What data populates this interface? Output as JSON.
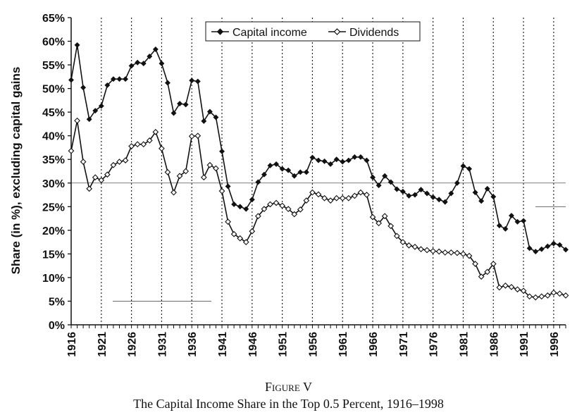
{
  "figure": {
    "label": "Figure V",
    "caption": "The Capital Income Share in the Top 0.5 Percent, 1916–1998"
  },
  "chart_data": {
    "type": "line",
    "ylabel": "Share (in %), excluding capital gains",
    "xlabel": "",
    "xlim": [
      1916,
      1998
    ],
    "ylim": [
      0,
      65
    ],
    "y_tick_values": [
      0,
      5,
      10,
      15,
      20,
      25,
      30,
      35,
      40,
      45,
      50,
      55,
      60,
      65
    ],
    "y_tick_labels": [
      "0%",
      "5%",
      "10%",
      "15%",
      "20%",
      "25%",
      "30%",
      "35%",
      "40%",
      "45%",
      "50%",
      "55%",
      "60%",
      "65%"
    ],
    "x_ticks": [
      "1916",
      "1921",
      "1926",
      "1931",
      "1936",
      "1941",
      "1946",
      "1951",
      "1956",
      "1961",
      "1966",
      "1971",
      "1976",
      "1981",
      "1986",
      "1991",
      "1996"
    ],
    "grid": "vertical dotted at x ticks; horizontal solid segments in places",
    "legend_position": "top-center",
    "x": [
      1916,
      1917,
      1918,
      1919,
      1920,
      1921,
      1922,
      1923,
      1924,
      1925,
      1926,
      1927,
      1928,
      1929,
      1930,
      1931,
      1932,
      1933,
      1934,
      1935,
      1936,
      1937,
      1938,
      1939,
      1940,
      1941,
      1942,
      1943,
      1944,
      1945,
      1946,
      1947,
      1948,
      1949,
      1950,
      1951,
      1952,
      1953,
      1954,
      1955,
      1956,
      1957,
      1958,
      1959,
      1960,
      1961,
      1962,
      1963,
      1964,
      1965,
      1966,
      1967,
      1968,
      1969,
      1970,
      1971,
      1972,
      1973,
      1974,
      1975,
      1976,
      1977,
      1978,
      1979,
      1980,
      1981,
      1982,
      1983,
      1984,
      1985,
      1986,
      1987,
      1988,
      1989,
      1990,
      1991,
      1992,
      1993,
      1994,
      1995,
      1996,
      1997,
      1998
    ],
    "series": [
      {
        "name": "Capital income",
        "marker": "filled-diamond",
        "color": "#111111",
        "values": [
          51.8,
          59.2,
          50.2,
          43.5,
          45.3,
          46.3,
          50.7,
          52.0,
          52.0,
          52.0,
          54.8,
          55.5,
          55.3,
          56.8,
          58.3,
          55.3,
          51.2,
          44.8,
          46.8,
          46.6,
          51.7,
          51.5,
          43.1,
          45.1,
          43.9,
          36.7,
          29.3,
          25.5,
          25.0,
          24.5,
          26.5,
          30.2,
          31.8,
          33.7,
          34.0,
          33.0,
          32.7,
          31.5,
          32.3,
          32.3,
          35.4,
          34.8,
          34.6,
          34.0,
          35.0,
          34.5,
          34.8,
          35.5,
          35.5,
          34.8,
          31.2,
          29.5,
          31.5,
          30.2,
          28.7,
          28.2,
          27.3,
          27.5,
          28.6,
          27.8,
          27.0,
          26.5,
          26.0,
          27.8,
          30.0,
          33.6,
          33.0,
          28.0,
          26.2,
          28.8,
          27.1,
          21.0,
          20.3,
          23.1,
          21.8,
          22.0,
          16.2,
          15.5,
          16.0,
          16.6,
          17.2,
          16.9,
          15.9
        ]
      },
      {
        "name": "Dividends",
        "marker": "open-diamond",
        "color": "#111111",
        "values": [
          36.8,
          43.2,
          34.5,
          28.8,
          31.2,
          30.6,
          31.8,
          33.8,
          34.5,
          34.8,
          37.8,
          38.2,
          38.2,
          39.0,
          40.8,
          37.3,
          32.3,
          28.0,
          31.5,
          32.5,
          39.9,
          40.0,
          31.2,
          33.8,
          33.1,
          28.3,
          21.8,
          19.2,
          18.3,
          17.5,
          19.8,
          23.0,
          24.5,
          25.5,
          25.8,
          25.2,
          24.5,
          23.4,
          24.4,
          26.3,
          28.0,
          27.6,
          26.8,
          26.3,
          26.8,
          26.8,
          26.8,
          27.3,
          28.0,
          27.5,
          22.8,
          21.5,
          23.0,
          20.9,
          18.8,
          17.5,
          16.8,
          16.5,
          16.0,
          15.8,
          15.6,
          15.5,
          15.3,
          15.3,
          15.2,
          15.0,
          14.6,
          12.9,
          10.2,
          11.2,
          12.9,
          7.9,
          8.3,
          8.0,
          7.5,
          7.2,
          6.0,
          5.8,
          6.0,
          6.2,
          6.8,
          6.6,
          6.2
        ]
      }
    ]
  }
}
